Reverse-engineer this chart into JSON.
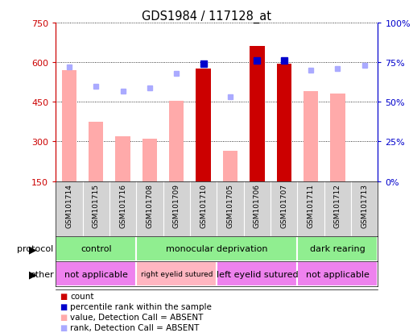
{
  "title": "GDS1984 / 117128_at",
  "samples": [
    "GSM101714",
    "GSM101715",
    "GSM101716",
    "GSM101708",
    "GSM101709",
    "GSM101710",
    "GSM101705",
    "GSM101706",
    "GSM101707",
    "GSM101711",
    "GSM101712",
    "GSM101713"
  ],
  "bar_values": [
    null,
    null,
    null,
    null,
    null,
    575,
    null,
    660,
    595,
    null,
    null,
    null
  ],
  "bar_absent": [
    570,
    375,
    320,
    310,
    455,
    null,
    265,
    null,
    null,
    490,
    480,
    null
  ],
  "rank_present": [
    null,
    null,
    null,
    null,
    null,
    74,
    null,
    76,
    76,
    null,
    null,
    null
  ],
  "rank_absent": [
    72,
    60,
    57,
    59,
    68,
    null,
    53,
    null,
    null,
    70,
    71,
    73
  ],
  "ylim_left": [
    150,
    750
  ],
  "ylim_right": [
    0,
    100
  ],
  "yticks_left": [
    150,
    300,
    450,
    600,
    750
  ],
  "yticks_right": [
    0,
    25,
    50,
    75,
    100
  ],
  "right_tick_labels": [
    "0%",
    "25%",
    "50%",
    "75%",
    "100%"
  ],
  "protocol_groups": [
    {
      "label": "control",
      "start": 0,
      "end": 3,
      "color": "#90ee90"
    },
    {
      "label": "monocular deprivation",
      "start": 3,
      "end": 9,
      "color": "#90ee90"
    },
    {
      "label": "dark rearing",
      "start": 9,
      "end": 12,
      "color": "#90ee90"
    }
  ],
  "other_groups": [
    {
      "label": "not applicable",
      "start": 0,
      "end": 3,
      "color": "#ee82ee"
    },
    {
      "label": "right eyelid sutured",
      "start": 3,
      "end": 6,
      "color": "#ffb6c1"
    },
    {
      "label": "left eyelid sutured",
      "start": 6,
      "end": 9,
      "color": "#ee82ee"
    },
    {
      "label": "not applicable",
      "start": 9,
      "end": 12,
      "color": "#ee82ee"
    }
  ],
  "bar_color_present": "#cc0000",
  "bar_color_absent": "#ffaaaa",
  "rank_color_present": "#0000cc",
  "rank_color_absent": "#aaaaff",
  "bg_color": "#ffffff",
  "axis_left_color": "#cc0000",
  "axis_right_color": "#0000cc",
  "sample_bg": "#d3d3d3",
  "legend_items": [
    {
      "color": "#cc0000",
      "text": "count"
    },
    {
      "color": "#0000cc",
      "text": "percentile rank within the sample"
    },
    {
      "color": "#ffaaaa",
      "text": "value, Detection Call = ABSENT"
    },
    {
      "color": "#aaaaff",
      "text": "rank, Detection Call = ABSENT"
    }
  ]
}
